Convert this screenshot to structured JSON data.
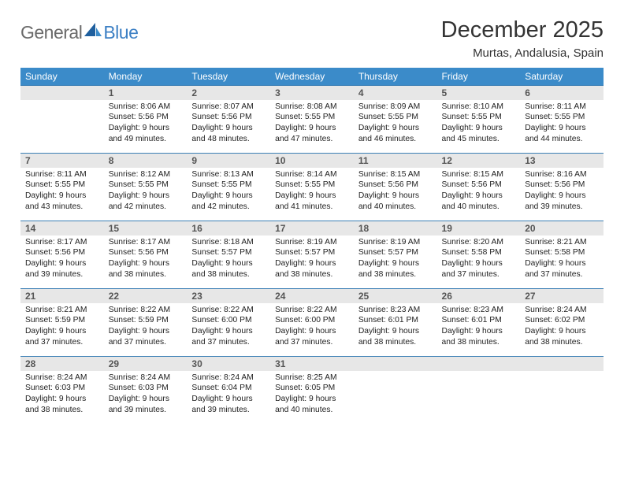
{
  "logo": {
    "text1": "General",
    "text2": "Blue"
  },
  "title": "December 2025",
  "location": "Murtas, Andalusia, Spain",
  "colors": {
    "header_bg": "#3b8bc9",
    "daynum_bg": "#e7e7e7",
    "daynum_border": "#3b7fb5",
    "logo_gray": "#6a6a6a",
    "logo_blue": "#3b7fc4"
  },
  "weekdays": [
    "Sunday",
    "Monday",
    "Tuesday",
    "Wednesday",
    "Thursday",
    "Friday",
    "Saturday"
  ],
  "weeks": [
    {
      "nums": [
        "",
        "1",
        "2",
        "3",
        "4",
        "5",
        "6"
      ],
      "cells": [
        null,
        {
          "sunrise": "8:06 AM",
          "sunset": "5:56 PM",
          "daylight": "9 hours and 49 minutes."
        },
        {
          "sunrise": "8:07 AM",
          "sunset": "5:56 PM",
          "daylight": "9 hours and 48 minutes."
        },
        {
          "sunrise": "8:08 AM",
          "sunset": "5:55 PM",
          "daylight": "9 hours and 47 minutes."
        },
        {
          "sunrise": "8:09 AM",
          "sunset": "5:55 PM",
          "daylight": "9 hours and 46 minutes."
        },
        {
          "sunrise": "8:10 AM",
          "sunset": "5:55 PM",
          "daylight": "9 hours and 45 minutes."
        },
        {
          "sunrise": "8:11 AM",
          "sunset": "5:55 PM",
          "daylight": "9 hours and 44 minutes."
        }
      ]
    },
    {
      "nums": [
        "7",
        "8",
        "9",
        "10",
        "11",
        "12",
        "13"
      ],
      "cells": [
        {
          "sunrise": "8:11 AM",
          "sunset": "5:55 PM",
          "daylight": "9 hours and 43 minutes."
        },
        {
          "sunrise": "8:12 AM",
          "sunset": "5:55 PM",
          "daylight": "9 hours and 42 minutes."
        },
        {
          "sunrise": "8:13 AM",
          "sunset": "5:55 PM",
          "daylight": "9 hours and 42 minutes."
        },
        {
          "sunrise": "8:14 AM",
          "sunset": "5:55 PM",
          "daylight": "9 hours and 41 minutes."
        },
        {
          "sunrise": "8:15 AM",
          "sunset": "5:56 PM",
          "daylight": "9 hours and 40 minutes."
        },
        {
          "sunrise": "8:15 AM",
          "sunset": "5:56 PM",
          "daylight": "9 hours and 40 minutes."
        },
        {
          "sunrise": "8:16 AM",
          "sunset": "5:56 PM",
          "daylight": "9 hours and 39 minutes."
        }
      ]
    },
    {
      "nums": [
        "14",
        "15",
        "16",
        "17",
        "18",
        "19",
        "20"
      ],
      "cells": [
        {
          "sunrise": "8:17 AM",
          "sunset": "5:56 PM",
          "daylight": "9 hours and 39 minutes."
        },
        {
          "sunrise": "8:17 AM",
          "sunset": "5:56 PM",
          "daylight": "9 hours and 38 minutes."
        },
        {
          "sunrise": "8:18 AM",
          "sunset": "5:57 PM",
          "daylight": "9 hours and 38 minutes."
        },
        {
          "sunrise": "8:19 AM",
          "sunset": "5:57 PM",
          "daylight": "9 hours and 38 minutes."
        },
        {
          "sunrise": "8:19 AM",
          "sunset": "5:57 PM",
          "daylight": "9 hours and 38 minutes."
        },
        {
          "sunrise": "8:20 AM",
          "sunset": "5:58 PM",
          "daylight": "9 hours and 37 minutes."
        },
        {
          "sunrise": "8:21 AM",
          "sunset": "5:58 PM",
          "daylight": "9 hours and 37 minutes."
        }
      ]
    },
    {
      "nums": [
        "21",
        "22",
        "23",
        "24",
        "25",
        "26",
        "27"
      ],
      "cells": [
        {
          "sunrise": "8:21 AM",
          "sunset": "5:59 PM",
          "daylight": "9 hours and 37 minutes."
        },
        {
          "sunrise": "8:22 AM",
          "sunset": "5:59 PM",
          "daylight": "9 hours and 37 minutes."
        },
        {
          "sunrise": "8:22 AM",
          "sunset": "6:00 PM",
          "daylight": "9 hours and 37 minutes."
        },
        {
          "sunrise": "8:22 AM",
          "sunset": "6:00 PM",
          "daylight": "9 hours and 37 minutes."
        },
        {
          "sunrise": "8:23 AM",
          "sunset": "6:01 PM",
          "daylight": "9 hours and 38 minutes."
        },
        {
          "sunrise": "8:23 AM",
          "sunset": "6:01 PM",
          "daylight": "9 hours and 38 minutes."
        },
        {
          "sunrise": "8:24 AM",
          "sunset": "6:02 PM",
          "daylight": "9 hours and 38 minutes."
        }
      ]
    },
    {
      "nums": [
        "28",
        "29",
        "30",
        "31",
        "",
        "",
        ""
      ],
      "cells": [
        {
          "sunrise": "8:24 AM",
          "sunset": "6:03 PM",
          "daylight": "9 hours and 38 minutes."
        },
        {
          "sunrise": "8:24 AM",
          "sunset": "6:03 PM",
          "daylight": "9 hours and 39 minutes."
        },
        {
          "sunrise": "8:24 AM",
          "sunset": "6:04 PM",
          "daylight": "9 hours and 39 minutes."
        },
        {
          "sunrise": "8:25 AM",
          "sunset": "6:05 PM",
          "daylight": "9 hours and 40 minutes."
        },
        null,
        null,
        null
      ]
    }
  ],
  "labels": {
    "sunrise": "Sunrise:",
    "sunset": "Sunset:",
    "daylight": "Daylight:"
  }
}
